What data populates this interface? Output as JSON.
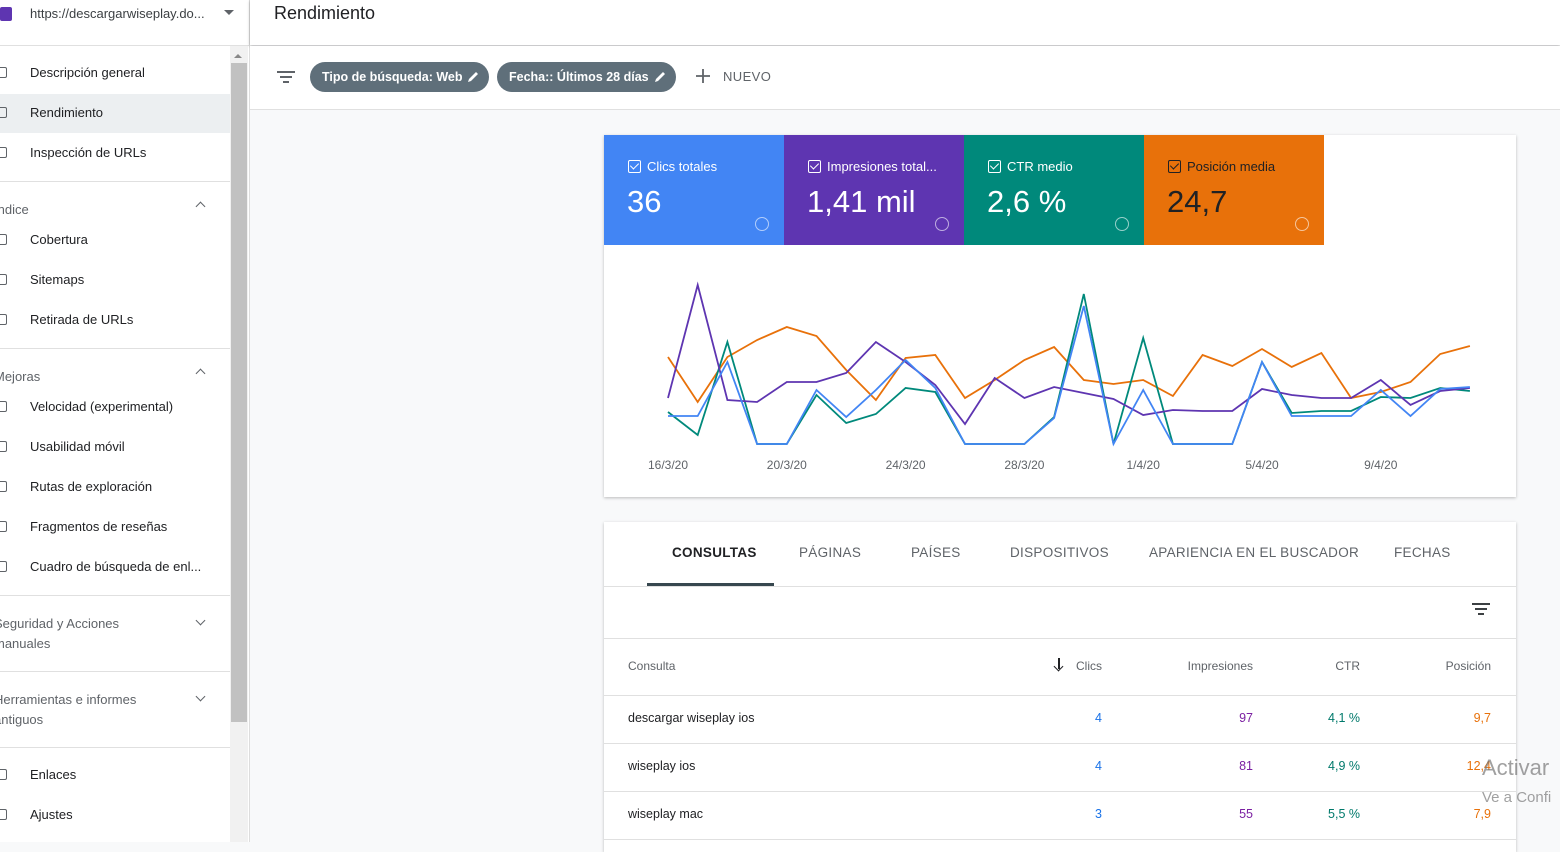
{
  "site": "https://descargarwiseplay.do...",
  "header": {
    "title": "Rendimiento"
  },
  "sidebar": {
    "top": [
      "Descripción general",
      "Rendimiento",
      "Inspección de URLs"
    ],
    "sections": [
      {
        "title": "Índice",
        "items": [
          "Cobertura",
          "Sitemaps",
          "Retirada de URLs"
        ]
      },
      {
        "title": "Mejoras",
        "items": [
          "Velocidad (experimental)",
          "Usabilidad móvil",
          "Rutas de exploración",
          "Fragmentos de reseñas",
          "Cuadro de búsqueda de enl..."
        ]
      },
      {
        "title": "Seguridad y Acciones manuales",
        "items": []
      },
      {
        "title": "Herramientas e informes antiguos",
        "items": []
      }
    ],
    "bottom": [
      "Enlaces",
      "Ajustes"
    ]
  },
  "filters": [
    "Tipo de búsqueda: Web",
    "Fecha:: Últimos 28 días"
  ],
  "new_filter": "NUEVO",
  "chart_data": {
    "type": "line",
    "categories": [
      "16/3/20",
      null,
      null,
      null,
      "20/3/20",
      null,
      null,
      null,
      "24/3/20",
      null,
      null,
      null,
      "28/3/20",
      null,
      null,
      null,
      "1/4/20",
      null,
      null,
      null,
      "5/4/20",
      null,
      null,
      null,
      "9/4/20",
      null,
      null,
      null
    ],
    "series": [
      {
        "name": "Clics totales",
        "total": "36",
        "color": "#4285f4",
        "values": [
          34,
          34,
          88,
          6,
          6,
          60,
          33,
          60,
          90,
          62,
          6,
          6,
          6,
          32,
          144,
          6,
          60,
          6,
          6,
          6,
          88,
          34,
          34,
          34,
          60,
          34,
          61,
          63
        ]
      },
      {
        "name": "Impresiones total...",
        "total": "1,41 mil",
        "color": "#5e35b1",
        "values": [
          52,
          165,
          50,
          48,
          68,
          68,
          77,
          108,
          88,
          65,
          26,
          72,
          52,
          63,
          57,
          51,
          35,
          40,
          39,
          39,
          61,
          55,
          52,
          52,
          70,
          45,
          59,
          62
        ]
      },
      {
        "name": "CTR medio",
        "total": "2,6 %",
        "color": "#00897b",
        "values": [
          38,
          15,
          108,
          6,
          6,
          55,
          27,
          36,
          62,
          58,
          6,
          6,
          6,
          33,
          156,
          6,
          112,
          6,
          6,
          6,
          88,
          37,
          39,
          39,
          53,
          52,
          62,
          59
        ]
      },
      {
        "name": "Posición media",
        "total": "24,7",
        "color": "#e8710a",
        "values": [
          93,
          48,
          93,
          110,
          123,
          114,
          80,
          50,
          92,
          95,
          52,
          70,
          90,
          103,
          70,
          66,
          70,
          54,
          95,
          84,
          101,
          83,
          97,
          52,
          58,
          68,
          96,
          104
        ]
      }
    ]
  },
  "tabs": [
    "CONSULTAS",
    "PÁGINAS",
    "PAÍSES",
    "DISPOSITIVOS",
    "APARIENCIA EN EL BUSCADOR",
    "FECHAS"
  ],
  "table": {
    "columns": [
      "Consulta",
      "Clics",
      "Impresiones",
      "CTR",
      "Posición"
    ],
    "rows": [
      [
        "descargar wiseplay ios",
        "4",
        "97",
        "4,1 %",
        "9,7"
      ],
      [
        "wiseplay ios",
        "4",
        "81",
        "4,9 %",
        "12,4"
      ],
      [
        "wiseplay mac",
        "3",
        "55",
        "5,5 %",
        "7,9"
      ]
    ]
  },
  "watermark": [
    "Activar",
    "Ve a Confi"
  ]
}
